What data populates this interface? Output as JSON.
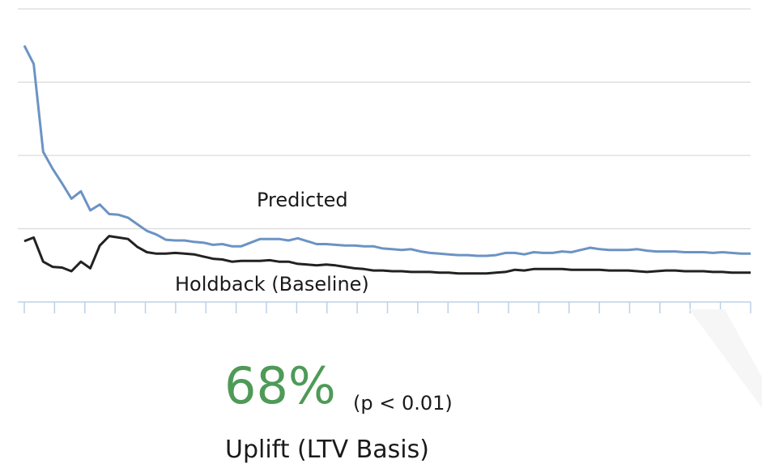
{
  "chart_data": {
    "type": "line",
    "title": "",
    "xlabel": "",
    "ylabel": "",
    "ylim": [
      0,
      4
    ],
    "grid": true,
    "series": [
      {
        "name": "Predicted",
        "color": "#6b93c4",
        "values": [
          3.5,
          3.25,
          2.05,
          1.82,
          1.62,
          1.41,
          1.51,
          1.25,
          1.33,
          1.2,
          1.19,
          1.15,
          1.06,
          0.97,
          0.92,
          0.85,
          0.84,
          0.84,
          0.82,
          0.81,
          0.78,
          0.79,
          0.76,
          0.76,
          0.81,
          0.86,
          0.86,
          0.86,
          0.84,
          0.87,
          0.83,
          0.79,
          0.79,
          0.78,
          0.77,
          0.77,
          0.76,
          0.76,
          0.73,
          0.72,
          0.71,
          0.72,
          0.69,
          0.67,
          0.66,
          0.65,
          0.64,
          0.64,
          0.63,
          0.63,
          0.64,
          0.67,
          0.67,
          0.65,
          0.68,
          0.67,
          0.67,
          0.69,
          0.68,
          0.71,
          0.74,
          0.72,
          0.71,
          0.71,
          0.71,
          0.72,
          0.7,
          0.69,
          0.69,
          0.69,
          0.68,
          0.68,
          0.68,
          0.67,
          0.68,
          0.67,
          0.66,
          0.66
        ]
      },
      {
        "name": "Holdback (Baseline)",
        "color": "#222222",
        "values": [
          0.83,
          0.88,
          0.55,
          0.48,
          0.47,
          0.42,
          0.55,
          0.46,
          0.77,
          0.9,
          0.88,
          0.86,
          0.75,
          0.68,
          0.66,
          0.66,
          0.67,
          0.66,
          0.65,
          0.62,
          0.59,
          0.58,
          0.55,
          0.56,
          0.56,
          0.56,
          0.57,
          0.55,
          0.55,
          0.52,
          0.51,
          0.5,
          0.51,
          0.5,
          0.48,
          0.46,
          0.45,
          0.43,
          0.43,
          0.42,
          0.42,
          0.41,
          0.41,
          0.41,
          0.4,
          0.4,
          0.39,
          0.39,
          0.39,
          0.39,
          0.4,
          0.41,
          0.44,
          0.43,
          0.45,
          0.45,
          0.45,
          0.45,
          0.44,
          0.44,
          0.44,
          0.44,
          0.43,
          0.43,
          0.43,
          0.42,
          0.41,
          0.42,
          0.43,
          0.43,
          0.42,
          0.42,
          0.42,
          0.41,
          0.41,
          0.4,
          0.4,
          0.4
        ]
      }
    ],
    "annotations": [
      "Predicted",
      "Holdback (Baseline)"
    ],
    "gridline_color": "#d9d9d9",
    "axis_color": "#bdd0e6"
  },
  "summary": {
    "uplift_value": "68%",
    "p_value": "(p < 0.01)",
    "caption": "Uplift (LTV Basis)",
    "uplift_color": "#4e9a57"
  }
}
